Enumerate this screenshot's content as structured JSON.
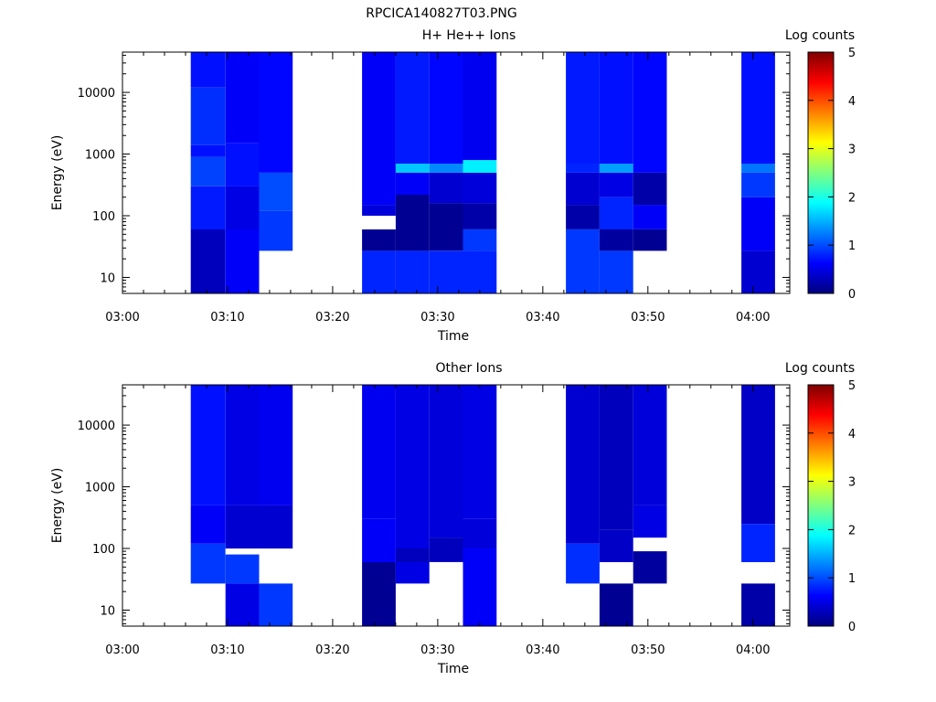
{
  "figure_title": "RPCICA140827T03.PNG",
  "colors": {
    "background": "#ffffff",
    "axis": "#000000",
    "colormap": [
      "#00007f",
      "#0000ff",
      "#007fff",
      "#00ffff",
      "#7fff7f",
      "#ffff00",
      "#ff7f00",
      "#ff0000",
      "#7f0000"
    ]
  },
  "chart_data": [
    {
      "type": "heatmap",
      "title": "H+ He++ Ions",
      "xlabel": "Time",
      "ylabel": "Energy (eV)",
      "colorbar_label": "Log counts",
      "x_tick_labels": [
        "03:00",
        "03:10",
        "03:20",
        "03:30",
        "03:40",
        "03:50",
        "04:00"
      ],
      "x_range_minutes": [
        0,
        63.5
      ],
      "y_scale": "log",
      "y_range": [
        5.5,
        45000
      ],
      "y_tick_labels": [
        "10",
        "100",
        "1000",
        "10000"
      ],
      "color_range": [
        0,
        5
      ],
      "colorbar_tick_labels": [
        "0",
        "1",
        "2",
        "3",
        "4",
        "5"
      ],
      "columns": [
        {
          "t0": 6.5,
          "t1": 9.8,
          "bands": [
            {
              "e0": 5.5,
              "e1": 60,
              "v": 0.3
            },
            {
              "e0": 60,
              "e1": 300,
              "v": 0.75
            },
            {
              "e0": 300,
              "e1": 900,
              "v": 0.95
            },
            {
              "e0": 900,
              "e1": 1400,
              "v": 0.7
            },
            {
              "e0": 1400,
              "e1": 12000,
              "v": 0.85
            },
            {
              "e0": 12000,
              "e1": 45000,
              "v": 0.7
            }
          ]
        },
        {
          "t0": 9.8,
          "t1": 13,
          "bands": [
            {
              "e0": 5.5,
              "e1": 60,
              "v": 0.6
            },
            {
              "e0": 60,
              "e1": 300,
              "v": 0.5
            },
            {
              "e0": 300,
              "e1": 1500,
              "v": 0.7
            },
            {
              "e0": 1500,
              "e1": 45000,
              "v": 0.6
            }
          ]
        },
        {
          "t0": 13,
          "t1": 16.2,
          "bands": [
            {
              "e0": 27,
              "e1": 120,
              "v": 0.9
            },
            {
              "e0": 120,
              "e1": 500,
              "v": 1.0
            },
            {
              "e0": 500,
              "e1": 45000,
              "v": 0.65
            }
          ]
        },
        {
          "t0": 22.8,
          "t1": 26,
          "bands": [
            {
              "e0": 5.5,
              "e1": 27,
              "v": 0.8
            },
            {
              "e0": 27,
              "e1": 60,
              "v": 0.1
            },
            {
              "e0": 100,
              "e1": 150,
              "v": 0.45
            },
            {
              "e0": 150,
              "e1": 45000,
              "v": 0.6
            }
          ]
        },
        {
          "t0": 26,
          "t1": 29.2,
          "bands": [
            {
              "e0": 5.5,
              "e1": 27,
              "v": 0.8
            },
            {
              "e0": 27,
              "e1": 220,
              "v": 0.1
            },
            {
              "e0": 220,
              "e1": 500,
              "v": 0.6
            },
            {
              "e0": 500,
              "e1": 700,
              "v": 1.6
            },
            {
              "e0": 700,
              "e1": 45000,
              "v": 0.75
            }
          ]
        },
        {
          "t0": 29.2,
          "t1": 32.4,
          "bands": [
            {
              "e0": 5.5,
              "e1": 27,
              "v": 0.8
            },
            {
              "e0": 27,
              "e1": 160,
              "v": 0.1
            },
            {
              "e0": 160,
              "e1": 500,
              "v": 0.4
            },
            {
              "e0": 500,
              "e1": 700,
              "v": 1.3
            },
            {
              "e0": 700,
              "e1": 45000,
              "v": 0.65
            }
          ]
        },
        {
          "t0": 32.4,
          "t1": 35.6,
          "bands": [
            {
              "e0": 5.5,
              "e1": 27,
              "v": 0.8
            },
            {
              "e0": 27,
              "e1": 60,
              "v": 0.9
            },
            {
              "e0": 60,
              "e1": 160,
              "v": 0.2
            },
            {
              "e0": 160,
              "e1": 500,
              "v": 0.45
            },
            {
              "e0": 500,
              "e1": 800,
              "v": 1.8
            },
            {
              "e0": 800,
              "e1": 45000,
              "v": 0.55
            }
          ]
        },
        {
          "t0": 42.2,
          "t1": 45.4,
          "bands": [
            {
              "e0": 5.5,
              "e1": 60,
              "v": 0.9
            },
            {
              "e0": 60,
              "e1": 150,
              "v": 0.2
            },
            {
              "e0": 150,
              "e1": 500,
              "v": 0.4
            },
            {
              "e0": 500,
              "e1": 700,
              "v": 0.8
            },
            {
              "e0": 700,
              "e1": 45000,
              "v": 0.75
            }
          ]
        },
        {
          "t0": 45.4,
          "t1": 48.6,
          "bands": [
            {
              "e0": 5.5,
              "e1": 27,
              "v": 0.9
            },
            {
              "e0": 27,
              "e1": 60,
              "v": 0.15
            },
            {
              "e0": 60,
              "e1": 200,
              "v": 0.8
            },
            {
              "e0": 200,
              "e1": 500,
              "v": 0.5
            },
            {
              "e0": 500,
              "e1": 700,
              "v": 1.4
            },
            {
              "e0": 700,
              "e1": 45000,
              "v": 0.7
            }
          ]
        },
        {
          "t0": 48.6,
          "t1": 51.8,
          "bands": [
            {
              "e0": 27,
              "e1": 60,
              "v": 0.1
            },
            {
              "e0": 60,
              "e1": 150,
              "v": 0.6
            },
            {
              "e0": 150,
              "e1": 500,
              "v": 0.2
            },
            {
              "e0": 500,
              "e1": 45000,
              "v": 0.65
            }
          ]
        },
        {
          "t0": 58.9,
          "t1": 62.1,
          "bands": [
            {
              "e0": 5.5,
              "e1": 27,
              "v": 0.4
            },
            {
              "e0": 27,
              "e1": 200,
              "v": 0.6
            },
            {
              "e0": 200,
              "e1": 500,
              "v": 0.9
            },
            {
              "e0": 500,
              "e1": 700,
              "v": 1.2
            },
            {
              "e0": 700,
              "e1": 45000,
              "v": 0.7
            }
          ]
        }
      ]
    },
    {
      "type": "heatmap",
      "title": "Other Ions",
      "xlabel": "Time",
      "ylabel": "Energy (eV)",
      "colorbar_label": "Log counts",
      "x_tick_labels": [
        "03:00",
        "03:10",
        "03:20",
        "03:30",
        "03:40",
        "03:50",
        "04:00"
      ],
      "x_range_minutes": [
        0,
        63.5
      ],
      "y_scale": "log",
      "y_range": [
        5.5,
        45000
      ],
      "y_tick_labels": [
        "10",
        "100",
        "1000",
        "10000"
      ],
      "color_range": [
        0,
        5
      ],
      "colorbar_tick_labels": [
        "0",
        "1",
        "2",
        "3",
        "4",
        "5"
      ],
      "columns": [
        {
          "t0": 6.5,
          "t1": 9.8,
          "bands": [
            {
              "e0": 27,
              "e1": 120,
              "v": 0.9
            },
            {
              "e0": 120,
              "e1": 500,
              "v": 0.6
            },
            {
              "e0": 500,
              "e1": 45000,
              "v": 0.7
            }
          ]
        },
        {
          "t0": 9.8,
          "t1": 13,
          "bands": [
            {
              "e0": 5.5,
              "e1": 27,
              "v": 0.5
            },
            {
              "e0": 27,
              "e1": 80,
              "v": 0.9
            },
            {
              "e0": 100,
              "e1": 500,
              "v": 0.4
            },
            {
              "e0": 500,
              "e1": 45000,
              "v": 0.5
            }
          ]
        },
        {
          "t0": 13,
          "t1": 16.2,
          "bands": [
            {
              "e0": 5.5,
              "e1": 27,
              "v": 0.9
            },
            {
              "e0": 100,
              "e1": 500,
              "v": 0.4
            },
            {
              "e0": 500,
              "e1": 45000,
              "v": 0.55
            }
          ]
        },
        {
          "t0": 22.8,
          "t1": 26,
          "bands": [
            {
              "e0": 5.5,
              "e1": 60,
              "v": 0.1
            },
            {
              "e0": 60,
              "e1": 300,
              "v": 0.6
            },
            {
              "e0": 300,
              "e1": 45000,
              "v": 0.55
            }
          ]
        },
        {
          "t0": 26,
          "t1": 29.2,
          "bands": [
            {
              "e0": 27,
              "e1": 60,
              "v": 0.5
            },
            {
              "e0": 60,
              "e1": 100,
              "v": 0.3
            },
            {
              "e0": 100,
              "e1": 45000,
              "v": 0.5
            }
          ]
        },
        {
          "t0": 29.2,
          "t1": 32.4,
          "bands": [
            {
              "e0": 60,
              "e1": 150,
              "v": 0.3
            },
            {
              "e0": 150,
              "e1": 45000,
              "v": 0.45
            }
          ]
        },
        {
          "t0": 32.4,
          "t1": 35.6,
          "bands": [
            {
              "e0": 5.5,
              "e1": 100,
              "v": 0.6
            },
            {
              "e0": 100,
              "e1": 300,
              "v": 0.45
            },
            {
              "e0": 300,
              "e1": 45000,
              "v": 0.5
            }
          ]
        },
        {
          "t0": 42.2,
          "t1": 45.4,
          "bands": [
            {
              "e0": 27,
              "e1": 120,
              "v": 0.85
            },
            {
              "e0": 120,
              "e1": 45000,
              "v": 0.4
            }
          ]
        },
        {
          "t0": 45.4,
          "t1": 48.6,
          "bands": [
            {
              "e0": 5.5,
              "e1": 27,
              "v": 0.1
            },
            {
              "e0": 60,
              "e1": 200,
              "v": 0.35
            },
            {
              "e0": 200,
              "e1": 45000,
              "v": 0.3
            }
          ]
        },
        {
          "t0": 48.6,
          "t1": 51.8,
          "bands": [
            {
              "e0": 27,
              "e1": 90,
              "v": 0.15
            },
            {
              "e0": 150,
              "e1": 500,
              "v": 0.5
            },
            {
              "e0": 500,
              "e1": 45000,
              "v": 0.45
            }
          ]
        },
        {
          "t0": 58.9,
          "t1": 62.1,
          "bands": [
            {
              "e0": 5.5,
              "e1": 27,
              "v": 0.2
            },
            {
              "e0": 60,
              "e1": 250,
              "v": 0.8
            },
            {
              "e0": 250,
              "e1": 45000,
              "v": 0.35
            }
          ]
        }
      ]
    }
  ]
}
